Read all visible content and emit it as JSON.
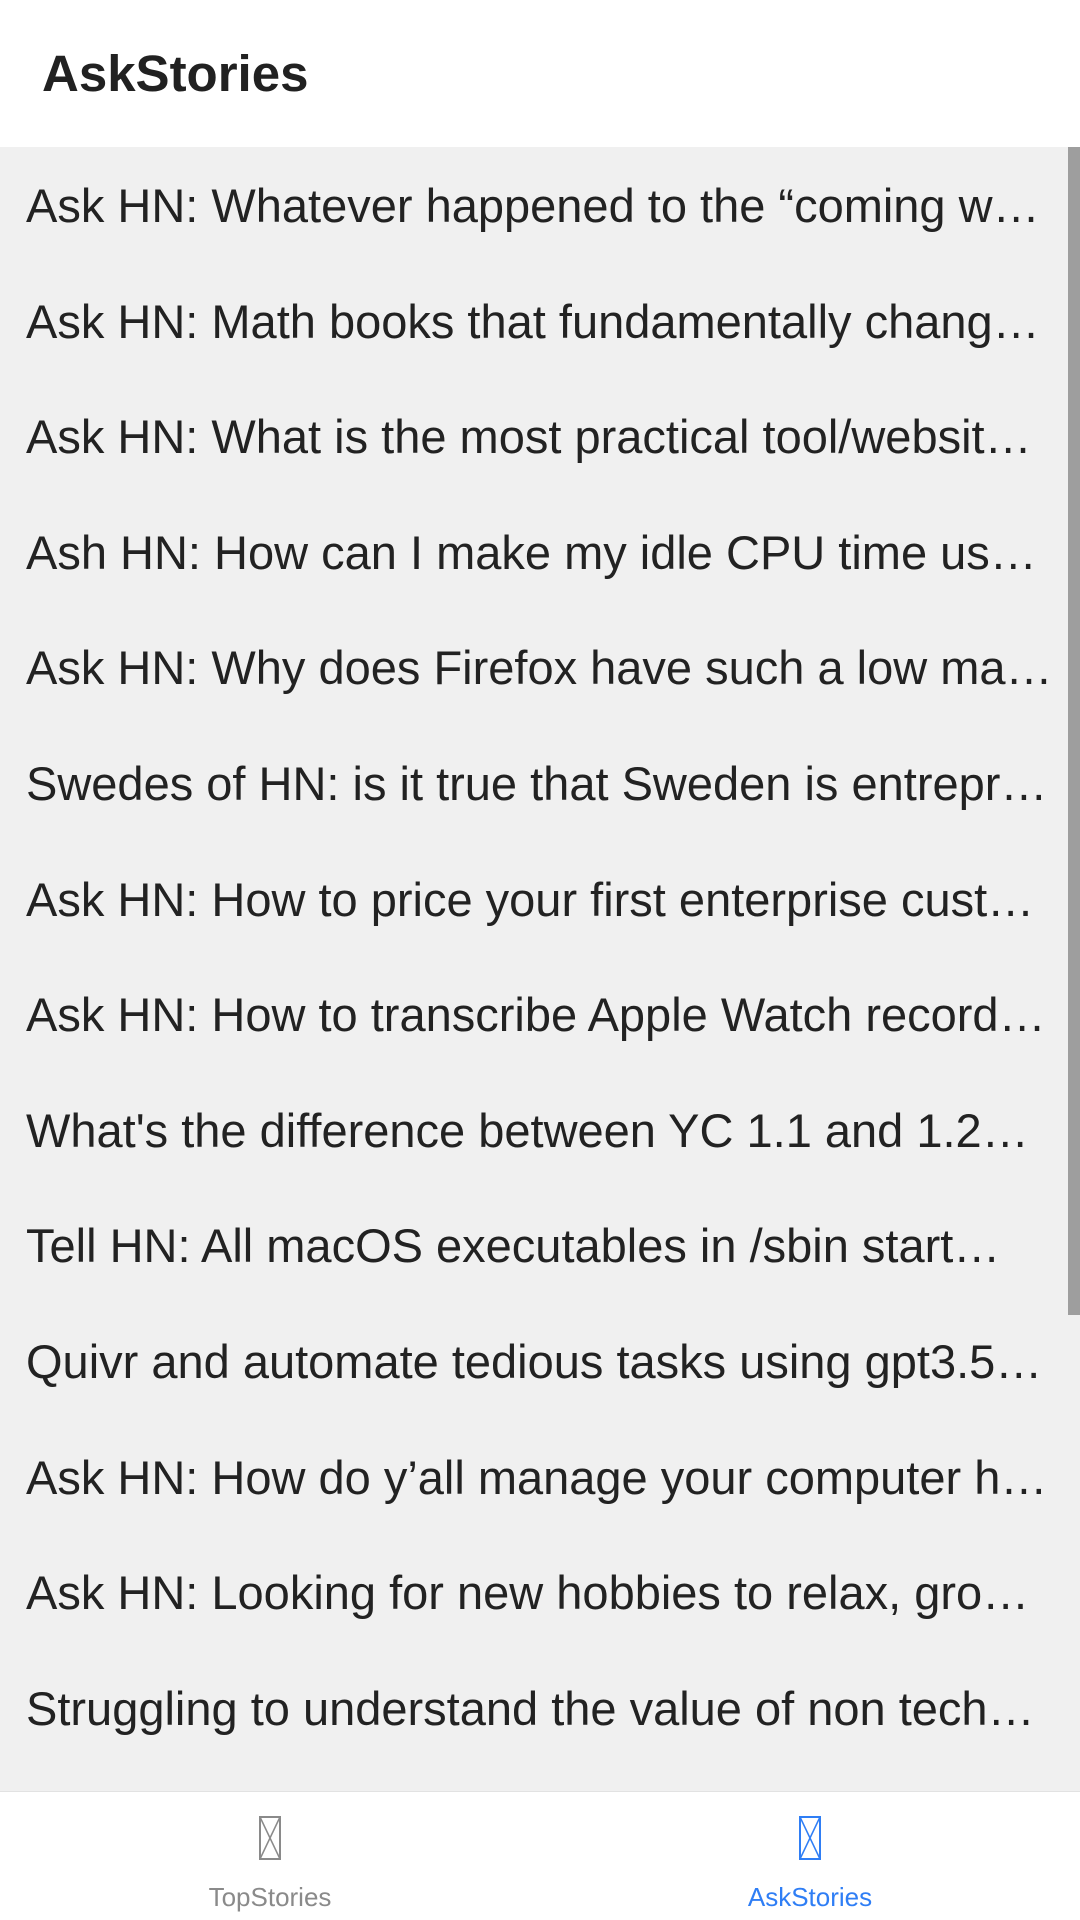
{
  "header": {
    "title": "AskStories"
  },
  "stories": [
    "Ask HN: Whatever happened to the “coming wa…",
    "Ask HN: Math books that fundamentally chang…",
    "Ask HN: What is the most practical tool/websit…",
    "Ash HN: How can I make my idle CPU time use…",
    "Ask HN: Why does Firefox have such a low mar…",
    "Swedes of HN: is it true that Sweden is entrepr…",
    "Ask HN: How to price your first enterprise cust…",
    "Ask HN: How to transcribe Apple Watch recordi…",
    "What's the difference between YC 1.1 and 1.2…",
    "Tell HN: All macOS executables in /sbin start…",
    "Quivr and automate tedious tasks using gpt3.5…",
    "Ask HN: How do y’all manage your computer h…",
    "Ask HN: Looking for new hobbies to relax, grow…",
    "Struggling to understand the value of non tech…"
  ],
  "tabbar": {
    "tabs": [
      {
        "label": "TopStories",
        "icon": "missing-glyph-icon",
        "active": false
      },
      {
        "label": "AskStories",
        "icon": "missing-glyph-icon",
        "active": true
      }
    ]
  },
  "colors": {
    "accent": "#2f7ef5",
    "inactive": "#8a8a8a",
    "list_background": "#f0f0f0"
  }
}
